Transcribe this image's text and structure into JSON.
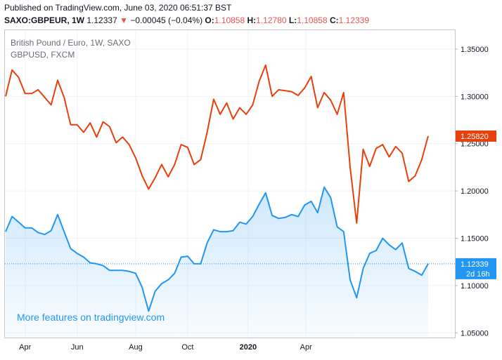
{
  "header": {
    "published": "Published on TradingView.com, June 03, 2020 06:51:37 BST",
    "symbol": "SAXO:GBPEUR, 1W",
    "price": "1.12337",
    "arrow": "▼",
    "change": "−0.00045 (−0.04%)",
    "o_label": "O:",
    "o_value": "1.10858",
    "h_label": "H:",
    "h_value": "1.12780",
    "l_label": "L:",
    "l_value": "1.10858",
    "c_label": "C:",
    "c_value": "1.12339"
  },
  "legend": {
    "main": "British Pound / Euro, 1W, SAXO",
    "compare": "GBPUSD, FXCM"
  },
  "promo": "More features on tradingview.com",
  "chart_data": {
    "type": "line",
    "x_tick_labels": [
      "Apr",
      "Jun",
      "Aug",
      "Oct",
      "2020",
      "Apr"
    ],
    "y_tick_labels": [
      "1.35000",
      "1.30000",
      "1.25000",
      "1.20000",
      "1.15000",
      "1.10000",
      "1.05000"
    ],
    "ylim": [
      1.045,
      1.37
    ],
    "series": [
      {
        "name": "GBPUSD, FXCM",
        "color": "#e8400c",
        "last_label": "1.25820",
        "values": [
          1.3,
          1.328,
          1.32,
          1.303,
          1.303,
          1.307,
          1.299,
          1.291,
          1.317,
          1.299,
          1.27,
          1.27,
          1.262,
          1.272,
          1.257,
          1.273,
          1.268,
          1.251,
          1.257,
          1.249,
          1.235,
          1.216,
          1.202,
          1.214,
          1.228,
          1.215,
          1.228,
          1.249,
          1.246,
          1.228,
          1.233,
          1.262,
          1.297,
          1.281,
          1.293,
          1.276,
          1.288,
          1.281,
          1.291,
          1.316,
          1.333,
          1.3,
          1.307,
          1.306,
          1.305,
          1.301,
          1.309,
          1.321,
          1.288,
          1.304,
          1.296,
          1.281,
          1.304,
          1.225,
          1.166,
          1.244,
          1.226,
          1.245,
          1.249,
          1.236,
          1.247,
          1.24,
          1.21,
          1.216,
          1.233,
          1.258
        ]
      },
      {
        "name": "SAXO:GBPEUR",
        "color": "#2196f3",
        "fill": "#2196f3",
        "last_label": "1.12339",
        "countdown": "2d 16h",
        "values": [
          1.157,
          1.173,
          1.167,
          1.161,
          1.161,
          1.156,
          1.154,
          1.158,
          1.175,
          1.157,
          1.139,
          1.134,
          1.13,
          1.124,
          1.123,
          1.121,
          1.116,
          1.116,
          1.116,
          1.115,
          1.113,
          1.098,
          1.073,
          1.094,
          1.102,
          1.106,
          1.113,
          1.13,
          1.131,
          1.123,
          1.123,
          1.145,
          1.159,
          1.157,
          1.157,
          1.158,
          1.167,
          1.165,
          1.173,
          1.186,
          1.198,
          1.174,
          1.171,
          1.172,
          1.175,
          1.173,
          1.185,
          1.189,
          1.177,
          1.204,
          1.193,
          1.162,
          1.157,
          1.106,
          1.087,
          1.118,
          1.134,
          1.137,
          1.15,
          1.143,
          1.138,
          1.145,
          1.118,
          1.115,
          1.111,
          1.123
        ]
      }
    ]
  }
}
